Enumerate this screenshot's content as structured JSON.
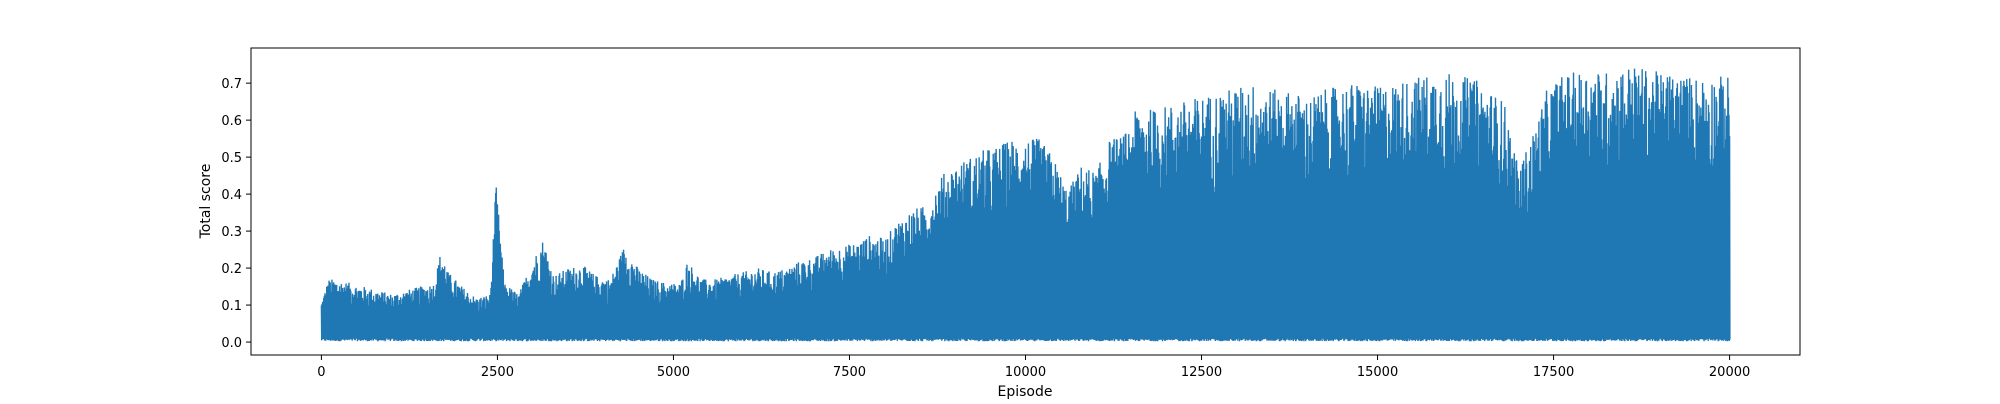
{
  "chart_data": {
    "type": "line",
    "title": "",
    "xlabel": "Episode",
    "ylabel": "Total score",
    "xlim": [
      -1000,
      21000
    ],
    "ylim": [
      -0.035,
      0.795
    ],
    "xticks": [
      0,
      2500,
      5000,
      7500,
      10000,
      12500,
      15000,
      17500,
      20000
    ],
    "xtick_labels": [
      "0",
      "2500",
      "5000",
      "7500",
      "10000",
      "12500",
      "15000",
      "17500",
      "20000"
    ],
    "yticks": [
      0.0,
      0.1,
      0.2,
      0.3,
      0.4,
      0.5,
      0.6,
      0.7
    ],
    "ytick_labels": [
      "0.0",
      "0.1",
      "0.2",
      "0.3",
      "0.4",
      "0.5",
      "0.6",
      "0.7"
    ],
    "grid": false,
    "legend": "none",
    "series": [
      {
        "color": "#1f77b4",
        "note_envelope": "upper envelope of the noisy per-episode score; lower envelope is ~0.0 for all episodes",
        "x": [
          0,
          100,
          200,
          400,
          600,
          800,
          1000,
          1200,
          1400,
          1600,
          1700,
          1800,
          2000,
          2200,
          2400,
          2480,
          2600,
          2800,
          3000,
          3150,
          3300,
          3500,
          3700,
          3900,
          4100,
          4300,
          4500,
          4700,
          4900,
          5100,
          5200,
          5400,
          5600,
          5800,
          6000,
          6200,
          6400,
          6600,
          6800,
          7000,
          7200,
          7400,
          7600,
          7800,
          8000,
          8200,
          8400,
          8600,
          8800,
          9000,
          9200,
          9400,
          9600,
          9800,
          10000,
          10200,
          10400,
          10600,
          10800,
          11000,
          11200,
          11400,
          11600,
          11800,
          12000,
          12200,
          12400,
          12600,
          12800,
          13000,
          13200,
          13400,
          13600,
          13800,
          14000,
          14200,
          14400,
          14600,
          14800,
          15000,
          15200,
          15400,
          15600,
          15800,
          16000,
          16200,
          16400,
          16600,
          16800,
          17000,
          17200,
          17400,
          17600,
          17800,
          18000,
          18200,
          18400,
          18600,
          18800,
          19000,
          19200,
          19400,
          19600,
          19800,
          20000
        ],
        "y": [
          0.11,
          0.17,
          0.17,
          0.16,
          0.15,
          0.14,
          0.13,
          0.14,
          0.15,
          0.16,
          0.25,
          0.19,
          0.15,
          0.12,
          0.13,
          0.43,
          0.16,
          0.13,
          0.22,
          0.28,
          0.18,
          0.2,
          0.21,
          0.18,
          0.17,
          0.26,
          0.2,
          0.17,
          0.16,
          0.16,
          0.22,
          0.17,
          0.17,
          0.18,
          0.19,
          0.2,
          0.19,
          0.2,
          0.22,
          0.23,
          0.25,
          0.26,
          0.27,
          0.29,
          0.28,
          0.33,
          0.36,
          0.37,
          0.45,
          0.48,
          0.5,
          0.52,
          0.53,
          0.55,
          0.55,
          0.55,
          0.5,
          0.41,
          0.48,
          0.46,
          0.55,
          0.56,
          0.64,
          0.63,
          0.64,
          0.65,
          0.66,
          0.67,
          0.68,
          0.69,
          0.7,
          0.69,
          0.68,
          0.68,
          0.66,
          0.68,
          0.69,
          0.7,
          0.7,
          0.69,
          0.7,
          0.71,
          0.72,
          0.73,
          0.73,
          0.72,
          0.71,
          0.68,
          0.65,
          0.47,
          0.56,
          0.68,
          0.72,
          0.73,
          0.74,
          0.73,
          0.74,
          0.75,
          0.74,
          0.73,
          0.73,
          0.72,
          0.72,
          0.72,
          0.72
        ]
      }
    ]
  }
}
